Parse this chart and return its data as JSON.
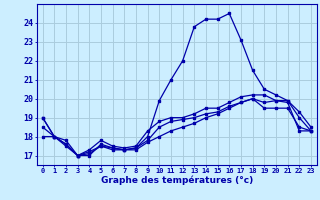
{
  "title": "Graphe des températures (°c)",
  "background_color": "#cceeff",
  "grid_color": "#aaccdd",
  "line_color": "#0000aa",
  "hours": [
    0,
    1,
    2,
    3,
    4,
    5,
    6,
    7,
    8,
    9,
    10,
    11,
    12,
    13,
    14,
    15,
    16,
    17,
    18,
    19,
    20,
    21,
    22,
    23
  ],
  "line1": [
    19,
    18,
    17.8,
    17,
    17.3,
    17.8,
    17.5,
    17.4,
    17.5,
    18.3,
    18.8,
    19.0,
    19.0,
    19.2,
    19.5,
    19.5,
    19.8,
    20.1,
    20.2,
    20.2,
    19.9,
    19.8,
    18.3,
    18.3
  ],
  "line2": [
    18,
    18,
    17.5,
    17,
    17.2,
    17.5,
    17.3,
    17.3,
    17.3,
    17.7,
    18.0,
    18.3,
    18.5,
    18.7,
    19.0,
    19.2,
    19.5,
    19.8,
    20.0,
    19.5,
    19.5,
    19.5,
    18.5,
    18.3
  ],
  "line3": [
    19,
    18,
    17.6,
    17,
    17.0,
    17.6,
    17.4,
    17.3,
    17.4,
    18.0,
    19.9,
    21.0,
    22.0,
    23.8,
    24.2,
    24.2,
    24.5,
    23.1,
    21.5,
    20.5,
    20.2,
    19.9,
    19.3,
    18.5
  ],
  "line4": [
    18.5,
    18,
    17.6,
    17,
    17.1,
    17.5,
    17.4,
    17.3,
    17.4,
    17.8,
    18.5,
    18.8,
    18.9,
    19.0,
    19.2,
    19.3,
    19.6,
    19.8,
    20.0,
    19.8,
    19.9,
    19.9,
    19.0,
    18.3
  ],
  "ylim": [
    16.5,
    25.0
  ],
  "yticks": [
    17,
    18,
    19,
    20,
    21,
    22,
    23,
    24
  ],
  "xlim": [
    -0.5,
    23.5
  ]
}
